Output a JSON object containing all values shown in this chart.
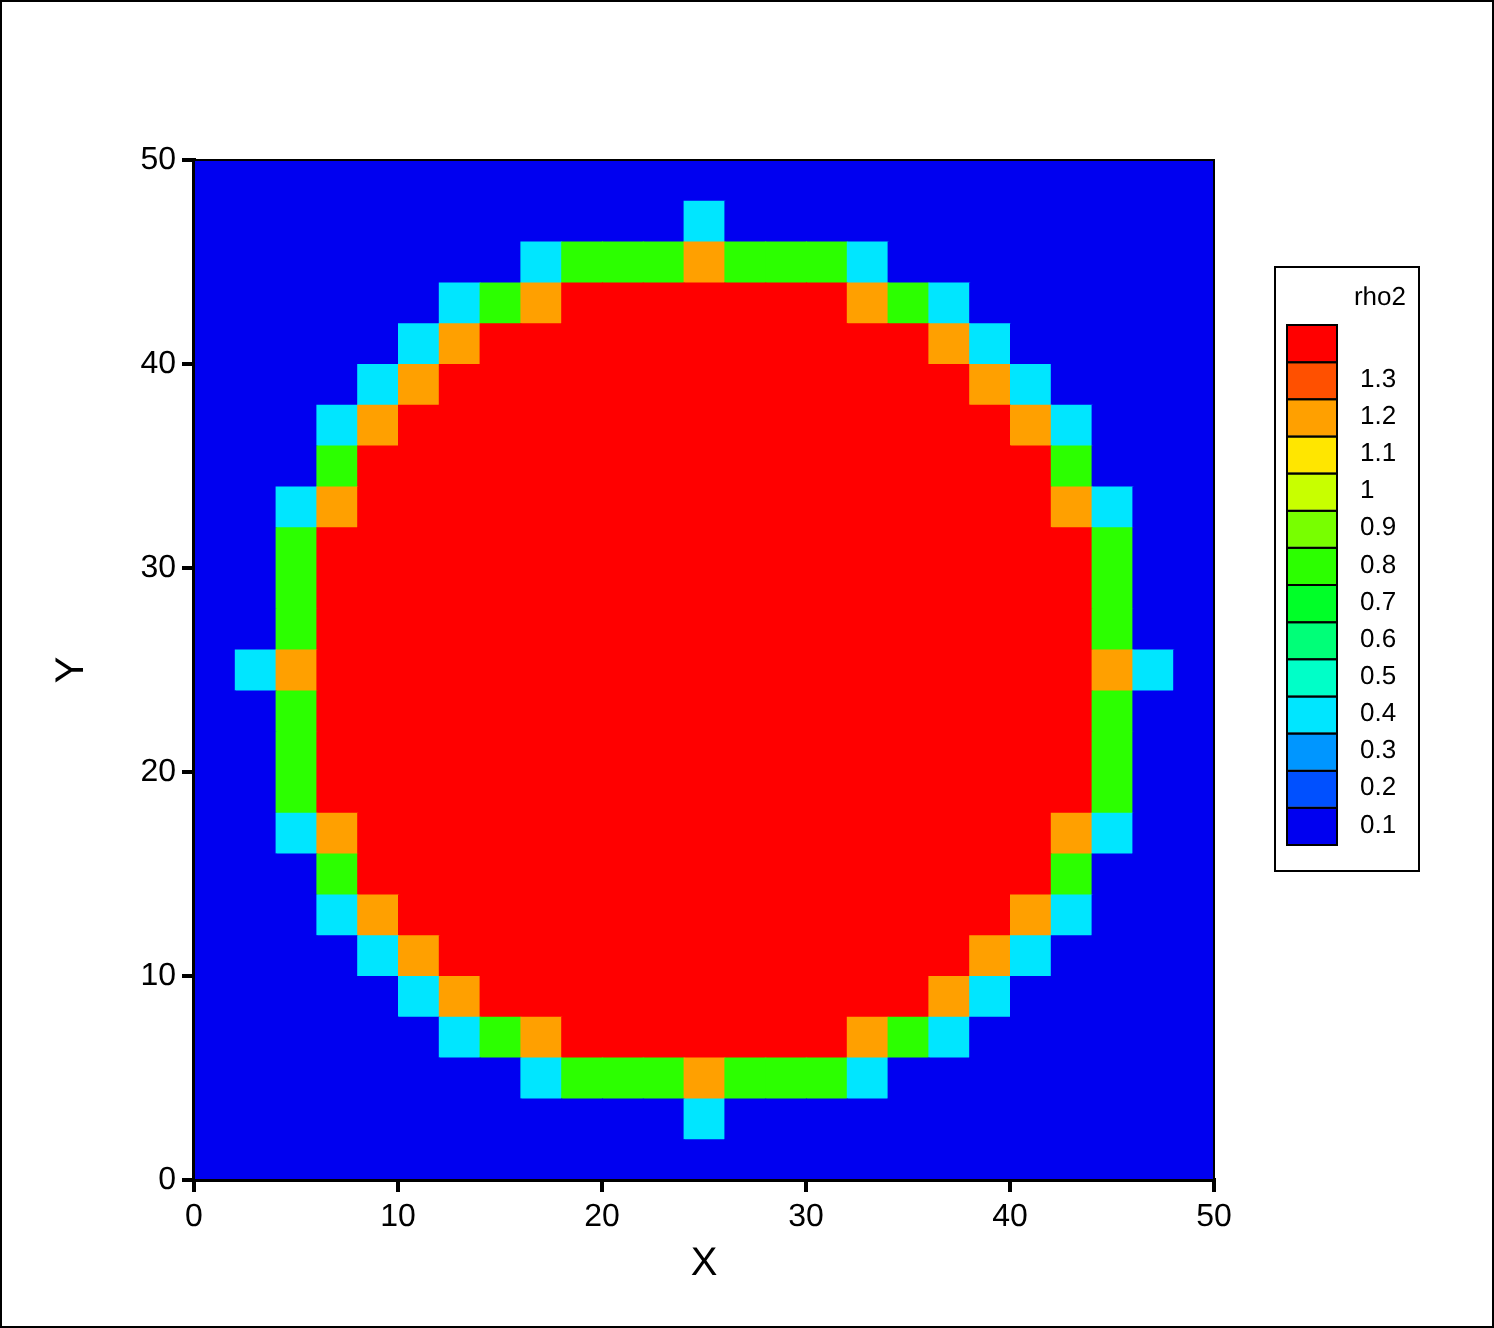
{
  "chart_data": {
    "type": "heatmap",
    "xlabel": "X",
    "ylabel": "Y",
    "clabel": "rho2",
    "x": [
      1,
      3,
      5,
      7,
      9,
      11,
      13,
      15,
      17,
      19,
      21,
      23,
      25,
      27,
      29,
      31,
      33,
      35,
      37,
      39,
      41,
      43,
      45,
      47,
      49
    ],
    "cells": [
      [
        0.1,
        0.1,
        0.1,
        0.1,
        0.1,
        0.1,
        0.1,
        0.1,
        0.1,
        0.1,
        0.1,
        0.1,
        0.1,
        0.1,
        0.1,
        0.1,
        0.1,
        0.1,
        0.1,
        0.1,
        0.1,
        0.1,
        0.1,
        0.1,
        0.1
      ],
      [
        0.1,
        0.1,
        0.1,
        0.1,
        0.1,
        0.1,
        0.1,
        0.1,
        0.1,
        0.1,
        0.1,
        0.1,
        0.4,
        0.1,
        0.1,
        0.1,
        0.1,
        0.1,
        0.1,
        0.1,
        0.1,
        0.1,
        0.1,
        0.1,
        0.1
      ],
      [
        0.1,
        0.1,
        0.1,
        0.1,
        0.1,
        0.1,
        0.1,
        0.1,
        0.4,
        0.8,
        0.8,
        0.8,
        1.2,
        0.8,
        0.8,
        0.8,
        0.4,
        0.1,
        0.1,
        0.1,
        0.1,
        0.1,
        0.1,
        0.1,
        0.1
      ],
      [
        0.1,
        0.1,
        0.1,
        0.1,
        0.1,
        0.1,
        0.4,
        0.8,
        1.2,
        1.4,
        1.4,
        1.4,
        1.4,
        1.4,
        1.4,
        1.4,
        1.2,
        0.8,
        0.4,
        0.1,
        0.1,
        0.1,
        0.1,
        0.1,
        0.1
      ],
      [
        0.1,
        0.1,
        0.1,
        0.1,
        0.1,
        0.4,
        1.2,
        1.4,
        1.4,
        1.4,
        1.4,
        1.4,
        1.4,
        1.4,
        1.4,
        1.4,
        1.4,
        1.4,
        1.2,
        0.4,
        0.1,
        0.1,
        0.1,
        0.1,
        0.1
      ],
      [
        0.1,
        0.1,
        0.1,
        0.1,
        0.4,
        1.2,
        1.4,
        1.4,
        1.4,
        1.4,
        1.4,
        1.4,
        1.4,
        1.4,
        1.4,
        1.4,
        1.4,
        1.4,
        1.4,
        1.2,
        0.4,
        0.1,
        0.1,
        0.1,
        0.1
      ],
      [
        0.1,
        0.1,
        0.1,
        0.4,
        1.2,
        1.4,
        1.4,
        1.4,
        1.4,
        1.4,
        1.4,
        1.4,
        1.4,
        1.4,
        1.4,
        1.4,
        1.4,
        1.4,
        1.4,
        1.4,
        1.2,
        0.4,
        0.1,
        0.1,
        0.1
      ],
      [
        0.1,
        0.1,
        0.1,
        0.8,
        1.4,
        1.4,
        1.4,
        1.4,
        1.4,
        1.4,
        1.4,
        1.4,
        1.4,
        1.4,
        1.4,
        1.4,
        1.4,
        1.4,
        1.4,
        1.4,
        1.4,
        0.8,
        0.1,
        0.1,
        0.1
      ],
      [
        0.1,
        0.1,
        0.4,
        1.2,
        1.4,
        1.4,
        1.4,
        1.4,
        1.4,
        1.4,
        1.4,
        1.4,
        1.4,
        1.4,
        1.4,
        1.4,
        1.4,
        1.4,
        1.4,
        1.4,
        1.4,
        1.2,
        0.4,
        0.1,
        0.1
      ],
      [
        0.1,
        0.1,
        0.8,
        1.4,
        1.4,
        1.4,
        1.4,
        1.4,
        1.4,
        1.4,
        1.4,
        1.4,
        1.4,
        1.4,
        1.4,
        1.4,
        1.4,
        1.4,
        1.4,
        1.4,
        1.4,
        1.4,
        0.8,
        0.1,
        0.1
      ],
      [
        0.1,
        0.1,
        0.8,
        1.4,
        1.4,
        1.4,
        1.4,
        1.4,
        1.4,
        1.4,
        1.4,
        1.4,
        1.4,
        1.4,
        1.4,
        1.4,
        1.4,
        1.4,
        1.4,
        1.4,
        1.4,
        1.4,
        0.8,
        0.1,
        0.1
      ],
      [
        0.1,
        0.1,
        0.8,
        1.4,
        1.4,
        1.4,
        1.4,
        1.4,
        1.4,
        1.4,
        1.4,
        1.4,
        1.4,
        1.4,
        1.4,
        1.4,
        1.4,
        1.4,
        1.4,
        1.4,
        1.4,
        1.4,
        0.8,
        0.1,
        0.1
      ],
      [
        0.1,
        0.4,
        1.2,
        1.4,
        1.4,
        1.4,
        1.4,
        1.4,
        1.4,
        1.4,
        1.4,
        1.4,
        1.4,
        1.4,
        1.4,
        1.4,
        1.4,
        1.4,
        1.4,
        1.4,
        1.4,
        1.4,
        1.2,
        0.4,
        0.1
      ],
      [
        0.1,
        0.1,
        0.8,
        1.4,
        1.4,
        1.4,
        1.4,
        1.4,
        1.4,
        1.4,
        1.4,
        1.4,
        1.4,
        1.4,
        1.4,
        1.4,
        1.4,
        1.4,
        1.4,
        1.4,
        1.4,
        1.4,
        0.8,
        0.1,
        0.1
      ],
      [
        0.1,
        0.1,
        0.8,
        1.4,
        1.4,
        1.4,
        1.4,
        1.4,
        1.4,
        1.4,
        1.4,
        1.4,
        1.4,
        1.4,
        1.4,
        1.4,
        1.4,
        1.4,
        1.4,
        1.4,
        1.4,
        1.4,
        0.8,
        0.1,
        0.1
      ],
      [
        0.1,
        0.1,
        0.8,
        1.4,
        1.4,
        1.4,
        1.4,
        1.4,
        1.4,
        1.4,
        1.4,
        1.4,
        1.4,
        1.4,
        1.4,
        1.4,
        1.4,
        1.4,
        1.4,
        1.4,
        1.4,
        1.4,
        0.8,
        0.1,
        0.1
      ],
      [
        0.1,
        0.1,
        0.4,
        1.2,
        1.4,
        1.4,
        1.4,
        1.4,
        1.4,
        1.4,
        1.4,
        1.4,
        1.4,
        1.4,
        1.4,
        1.4,
        1.4,
        1.4,
        1.4,
        1.4,
        1.4,
        1.2,
        0.4,
        0.1,
        0.1
      ],
      [
        0.1,
        0.1,
        0.1,
        0.8,
        1.4,
        1.4,
        1.4,
        1.4,
        1.4,
        1.4,
        1.4,
        1.4,
        1.4,
        1.4,
        1.4,
        1.4,
        1.4,
        1.4,
        1.4,
        1.4,
        1.4,
        0.8,
        0.1,
        0.1,
        0.1
      ],
      [
        0.1,
        0.1,
        0.1,
        0.4,
        1.2,
        1.4,
        1.4,
        1.4,
        1.4,
        1.4,
        1.4,
        1.4,
        1.4,
        1.4,
        1.4,
        1.4,
        1.4,
        1.4,
        1.4,
        1.4,
        1.2,
        0.4,
        0.1,
        0.1,
        0.1
      ],
      [
        0.1,
        0.1,
        0.1,
        0.1,
        0.4,
        1.2,
        1.4,
        1.4,
        1.4,
        1.4,
        1.4,
        1.4,
        1.4,
        1.4,
        1.4,
        1.4,
        1.4,
        1.4,
        1.4,
        1.2,
        0.4,
        0.1,
        0.1,
        0.1,
        0.1
      ],
      [
        0.1,
        0.1,
        0.1,
        0.1,
        0.1,
        0.4,
        1.2,
        1.4,
        1.4,
        1.4,
        1.4,
        1.4,
        1.4,
        1.4,
        1.4,
        1.4,
        1.4,
        1.4,
        1.2,
        0.4,
        0.1,
        0.1,
        0.1,
        0.1,
        0.1
      ],
      [
        0.1,
        0.1,
        0.1,
        0.1,
        0.1,
        0.1,
        0.4,
        0.8,
        1.2,
        1.4,
        1.4,
        1.4,
        1.4,
        1.4,
        1.4,
        1.4,
        1.2,
        0.8,
        0.4,
        0.1,
        0.1,
        0.1,
        0.1,
        0.1,
        0.1
      ],
      [
        0.1,
        0.1,
        0.1,
        0.1,
        0.1,
        0.1,
        0.1,
        0.1,
        0.4,
        0.8,
        0.8,
        0.8,
        1.2,
        0.8,
        0.8,
        0.8,
        0.4,
        0.1,
        0.1,
        0.1,
        0.1,
        0.1,
        0.1,
        0.1,
        0.1
      ],
      [
        0.1,
        0.1,
        0.1,
        0.1,
        0.1,
        0.1,
        0.1,
        0.1,
        0.1,
        0.1,
        0.1,
        0.1,
        0.4,
        0.1,
        0.1,
        0.1,
        0.1,
        0.1,
        0.1,
        0.1,
        0.1,
        0.1,
        0.1,
        0.1,
        0.1
      ],
      [
        0.1,
        0.1,
        0.1,
        0.1,
        0.1,
        0.1,
        0.1,
        0.1,
        0.1,
        0.1,
        0.1,
        0.1,
        0.1,
        0.1,
        0.1,
        0.1,
        0.1,
        0.1,
        0.1,
        0.1,
        0.1,
        0.1,
        0.1,
        0.1,
        0.1
      ]
    ],
    "colors": [
      "#0000f0",
      "#0050ff",
      "#0096ff",
      "#00e6ff",
      "#00ffc8",
      "#00ff78",
      "#00ff28",
      "#2cff00",
      "#78ff00",
      "#c8ff00",
      "#ffe600",
      "#ffa000",
      "#ff5000",
      "#ff0000"
    ],
    "clim": [
      0.05,
      1.45
    ],
    "cticks": [
      0.1,
      0.2,
      0.3,
      0.4,
      0.5,
      0.6,
      0.7,
      0.8,
      0.9,
      1,
      1.1,
      1.2,
      1.3
    ],
    "xlim": [
      0,
      50
    ],
    "ylim": [
      0,
      50
    ],
    "xticks": [
      0,
      10,
      20,
      30,
      40,
      50
    ],
    "yticks": [
      0,
      10,
      20,
      30,
      40,
      50
    ]
  }
}
